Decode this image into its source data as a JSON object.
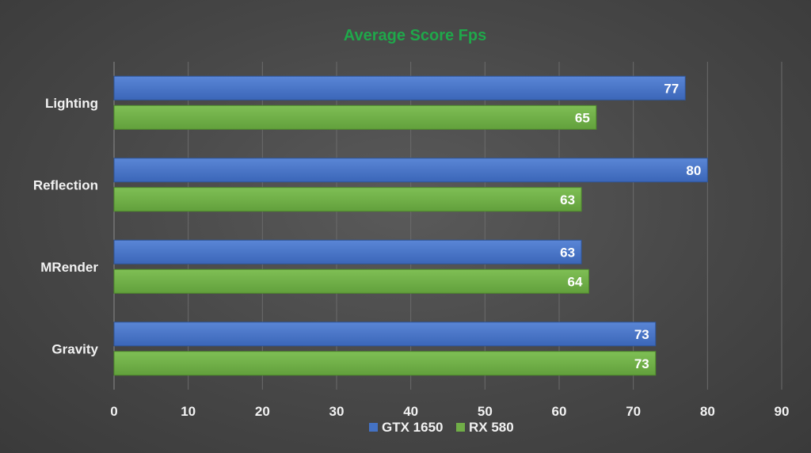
{
  "chart_data": {
    "type": "bar",
    "orientation": "horizontal",
    "title": "Average Score Fps",
    "categories": [
      "Lighting",
      "Reflection",
      "MRender",
      "Gravity"
    ],
    "series": [
      {
        "name": "GTX 1650",
        "values": [
          77,
          80,
          63,
          73
        ]
      },
      {
        "name": "RX 580",
        "values": [
          65,
          63,
          64,
          73
        ]
      }
    ],
    "xlim": [
      0,
      90
    ],
    "xticks": [
      0,
      10,
      20,
      30,
      40,
      50,
      60,
      70,
      80,
      90
    ],
    "grid": "vertical",
    "legend_position": "bottom",
    "data_labels": true
  },
  "colors": {
    "title": "#1fa84a",
    "GTX 1650": "#4472c4",
    "RX 580": "#70ad47",
    "grid": "#6b6b6b",
    "background": "#474747"
  }
}
